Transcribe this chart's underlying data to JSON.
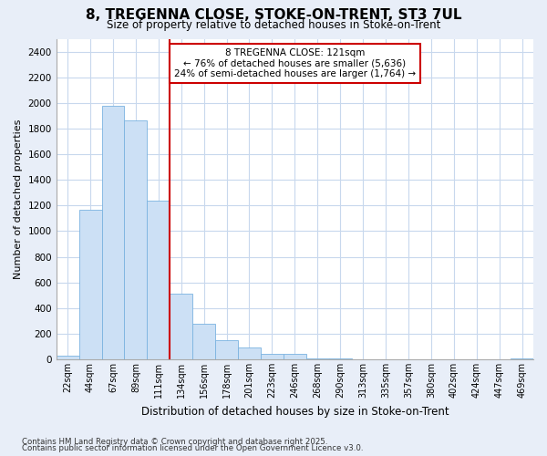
{
  "title_line1": "8, TREGENNA CLOSE, STOKE-ON-TRENT, ST3 7UL",
  "title_line2": "Size of property relative to detached houses in Stoke-on-Trent",
  "xlabel": "Distribution of detached houses by size in Stoke-on-Trent",
  "ylabel": "Number of detached properties",
  "bar_labels": [
    "22sqm",
    "44sqm",
    "67sqm",
    "89sqm",
    "111sqm",
    "134sqm",
    "156sqm",
    "178sqm",
    "201sqm",
    "223sqm",
    "246sqm",
    "268sqm",
    "290sqm",
    "313sqm",
    "335sqm",
    "357sqm",
    "380sqm",
    "402sqm",
    "424sqm",
    "447sqm",
    "469sqm"
  ],
  "bar_values": [
    25,
    1170,
    1980,
    1860,
    1240,
    510,
    275,
    150,
    90,
    45,
    40,
    5,
    5,
    3,
    2,
    1,
    1,
    1,
    1,
    1,
    5
  ],
  "bar_color": "#cce0f5",
  "bar_edge_color": "#7ab3e0",
  "vline_x": 4.5,
  "vline_color": "#cc0000",
  "annotation_text": "8 TREGENNA CLOSE: 121sqm\n← 76% of detached houses are smaller (5,636)\n24% of semi-detached houses are larger (1,764) →",
  "annotation_box_color": "white",
  "annotation_box_edge_color": "#cc0000",
  "ylim": [
    0,
    2500
  ],
  "yticks": [
    0,
    200,
    400,
    600,
    800,
    1000,
    1200,
    1400,
    1600,
    1800,
    2000,
    2200,
    2400
  ],
  "plot_bg_color": "white",
  "figure_bg_color": "#e8eef8",
  "grid_color": "#c8d8ed",
  "footer_line1": "Contains HM Land Registry data © Crown copyright and database right 2025.",
  "footer_line2": "Contains public sector information licensed under the Open Government Licence v3.0."
}
